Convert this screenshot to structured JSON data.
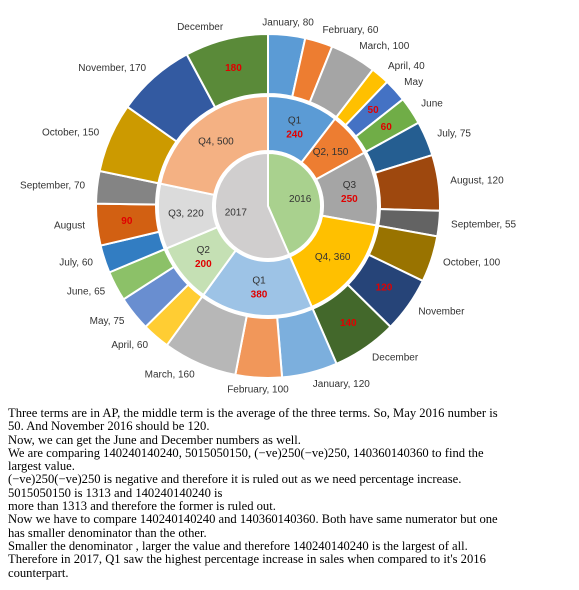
{
  "chart_data": {
    "type": "sunburst",
    "years": [
      {
        "label": "2016",
        "color": "#a9d18e",
        "quarters": [
          {
            "label": "Q1",
            "value": 240,
            "color": "#5b9bd5",
            "months": [
              {
                "label": "January, 80",
                "value": 80,
                "color": "#5b9bd5"
              },
              {
                "label": "February, 60",
                "value": 60,
                "color": "#ed7d31"
              },
              {
                "label": "March, 100",
                "value": 100,
                "color": "#a5a5a5"
              }
            ]
          },
          {
            "label": "Q2, 150",
            "value": 150,
            "color": "#ed7d31",
            "months": [
              {
                "label": "April, 40",
                "value": 40,
                "color": "#ffc000"
              },
              {
                "label": "May",
                "value": 50,
                "color": "#4472c4"
              },
              {
                "label": "June",
                "value": 60,
                "color": "#70ad47"
              }
            ]
          },
          {
            "label": "Q3",
            "value": 250,
            "color": "#a5a5a5",
            "months": [
              {
                "label": "July, 75",
                "value": 75,
                "color": "#255e91"
              },
              {
                "label": "August, 120",
                "value": 120,
                "color": "#9e480e"
              },
              {
                "label": "September, 55",
                "value": 55,
                "color": "#636363"
              }
            ]
          },
          {
            "label": "Q4, 360",
            "value": 360,
            "color": "#ffc000",
            "months": [
              {
                "label": "October, 100",
                "value": 100,
                "color": "#997300"
              },
              {
                "label": "November",
                "value": 120,
                "color": "#264478"
              },
              {
                "label": "December",
                "value": 140,
                "color": "#43682b"
              }
            ]
          }
        ]
      },
      {
        "label": "2017",
        "color": "#d0cece",
        "quarters": [
          {
            "label": "Q1",
            "value": 380,
            "color": "#9dc3e6",
            "months": [
              {
                "label": "January, 120",
                "value": 120,
                "color": "#7cafdd"
              },
              {
                "label": "February, 100",
                "value": 100,
                "color": "#f1975a"
              },
              {
                "label": "March, 160",
                "value": 160,
                "color": "#b7b7b7"
              }
            ]
          },
          {
            "label": "Q2",
            "value": 200,
            "color": "#c5e0b4",
            "months": [
              {
                "label": "April, 60",
                "value": 60,
                "color": "#ffcd33"
              },
              {
                "label": "May, 75",
                "value": 75,
                "color": "#698ed0"
              },
              {
                "label": "June, 65",
                "value": 65,
                "color": "#8cc168"
              }
            ]
          },
          {
            "label": "Q3, 220",
            "value": 220,
            "color": "#dbdbdb",
            "months": [
              {
                "label": "July, 60",
                "value": 60,
                "color": "#327dc2"
              },
              {
                "label": "August",
                "value": 90,
                "color": "#d26012"
              },
              {
                "label": "September, 70",
                "value": 70,
                "color": "#848484"
              }
            ]
          },
          {
            "label": "Q4, 500",
            "value": 500,
            "color": "#f4b183",
            "months": [
              {
                "label": "October, 150",
                "value": 150,
                "color": "#cc9a00"
              },
              {
                "label": "November, 170",
                "value": 170,
                "color": "#335aa1"
              },
              {
                "label": "December",
                "value": 180,
                "color": "#5a8a39"
              }
            ]
          }
        ]
      }
    ]
  },
  "explanation": [
    "Three terms are in AP, the middle term is the average of the three terms. So, May 2016 number is",
    "50. And November 2016 should be 120.",
    "Now, we can get the June and December numbers as well.",
    "We are comparing 140240140240, 5015050150, (−ve)250(−ve)250, 140360140360 to find the",
    "largest value.",
    "(−ve)250(−ve)250 is negative and therefore it is ruled out as we need percentage increase.",
    "5015050150 is 1313 and 140240140240 is",
    "more than 1313 and therefore the former is ruled out.",
    "Now we have to compare 140240140240 and 140360140360. Both have same numerator but one",
    "has smaller denominator than the other.",
    "Smaller the denominator , larger the value and therefore 140240140240 is the largest of all.",
    "Therefore in 2017, Q1 saw the highest percentage increase in sales when compared to it's 2016",
    "counterpart."
  ]
}
